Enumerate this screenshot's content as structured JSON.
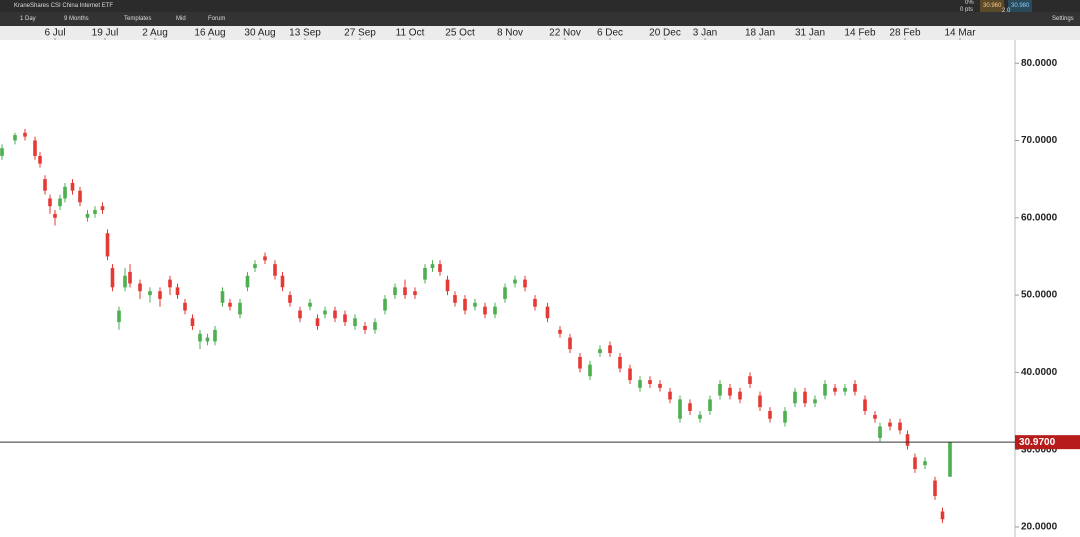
{
  "toolbar": {
    "instrument": "KraneShares CSI China Internet ETF",
    "interval": "1 Day",
    "range": "9 Months",
    "templates": "Templates",
    "price_type": "Mid",
    "forum": "Forum",
    "change_pct": "0%",
    "change_pts": "0 pts",
    "bid": "30.960",
    "ask": "30.980",
    "spread": "2.0",
    "settings": "Settings"
  },
  "chart_data": {
    "type": "candlestick",
    "up_color": "#4caf50",
    "down_color": "#e53935",
    "xlim": [
      0,
      203
    ],
    "ylim": [
      18.7,
      83
    ],
    "xticks": [
      {
        "value": 11,
        "label": "6 Jul"
      },
      {
        "value": 21,
        "label": "19 Jul"
      },
      {
        "value": 31,
        "label": "2 Aug"
      },
      {
        "value": 42,
        "label": "16 Aug"
      },
      {
        "value": 52,
        "label": "30 Aug"
      },
      {
        "value": 61,
        "label": "13 Sep"
      },
      {
        "value": 72,
        "label": "27 Sep"
      },
      {
        "value": 82,
        "label": "11 Oct"
      },
      {
        "value": 92,
        "label": "25 Oct"
      },
      {
        "value": 102,
        "label": "8 Nov"
      },
      {
        "value": 113,
        "label": "22 Nov"
      },
      {
        "value": 122,
        "label": "6 Dec"
      },
      {
        "value": 133,
        "label": "20 Dec"
      },
      {
        "value": 141,
        "label": "3 Jan"
      },
      {
        "value": 152,
        "label": "18 Jan"
      },
      {
        "value": 162,
        "label": "31 Jan"
      },
      {
        "value": 172,
        "label": "14 Feb"
      },
      {
        "value": 181,
        "label": "28 Feb"
      },
      {
        "value": 192,
        "label": "14 Mar"
      }
    ],
    "yticks": [
      {
        "value": 80,
        "label": "80.0000"
      },
      {
        "value": 70,
        "label": "70.0000"
      },
      {
        "value": 60,
        "label": "60.0000"
      },
      {
        "value": 50,
        "label": "50.0000"
      },
      {
        "value": 40,
        "label": "40.0000"
      },
      {
        "value": 30,
        "label": "30.0000"
      },
      {
        "value": 20,
        "label": "20.0000"
      }
    ],
    "last_price": {
      "value": 30.97,
      "label": "30.9700"
    },
    "x": [
      0.4,
      3,
      5,
      7,
      8,
      9,
      10,
      11,
      12,
      13,
      14.5,
      16,
      17.5,
      19,
      20.5,
      21.5,
      22.5,
      23.8,
      25,
      26,
      28,
      30,
      32,
      34,
      35.5,
      37,
      38.5,
      40,
      41.5,
      43,
      44.5,
      46,
      48,
      49.5,
      51,
      53,
      55,
      56.5,
      58,
      60,
      62,
      63.5,
      65,
      67,
      69,
      71,
      73,
      75,
      77,
      79,
      81,
      83,
      85,
      86.5,
      88,
      89.5,
      91,
      93,
      95,
      97,
      99,
      101,
      103,
      105,
      107,
      109.5,
      112,
      114,
      116,
      118,
      120,
      122,
      124,
      126,
      128,
      130,
      132,
      134,
      136,
      138,
      140,
      142,
      144,
      146,
      148,
      150,
      152,
      154,
      157,
      159,
      161,
      163,
      165,
      167,
      169,
      171,
      173,
      175,
      176,
      178,
      180,
      181.5,
      183,
      185,
      187,
      188.5,
      190
    ],
    "open": [
      68,
      70,
      71,
      70,
      68,
      65,
      62.5,
      60.5,
      61.5,
      62.5,
      64.5,
      63.5,
      60,
      60.5,
      61.5,
      58,
      53.5,
      46.5,
      51,
      53,
      51.5,
      50,
      50.5,
      52,
      51,
      49,
      47,
      44,
      44,
      44,
      49,
      49,
      47.5,
      51,
      53.5,
      55,
      54,
      52.5,
      50,
      48,
      48.5,
      47,
      47.5,
      48,
      47.5,
      46,
      46,
      45.5,
      48,
      50,
      51,
      50.5,
      52,
      53.5,
      54,
      52,
      50,
      49.5,
      48.5,
      48.5,
      47.5,
      49.5,
      51.5,
      52,
      49.5,
      48.5,
      45.5,
      44.5,
      42,
      39.5,
      42.5,
      43.5,
      42,
      40.5,
      38,
      39,
      38.5,
      37.5,
      34,
      36,
      34,
      35,
      37,
      38,
      37.5,
      39.5,
      37,
      35,
      33.5,
      36,
      37.5,
      36,
      37,
      38,
      37.5,
      38.5,
      36.5,
      34.5,
      31.5,
      33.5,
      33.5,
      32,
      29,
      28,
      26,
      22,
      26.5
    ],
    "high": [
      69.5,
      71,
      71.5,
      70.5,
      68.5,
      65.5,
      63,
      61,
      63,
      64.5,
      65,
      64,
      61,
      61.5,
      62,
      58.5,
      54,
      48.5,
      53.5,
      54,
      52,
      51,
      51,
      52.5,
      51.5,
      49.5,
      47.5,
      45.5,
      45,
      46,
      51,
      49.5,
      49.5,
      53,
      54.5,
      55.5,
      54.5,
      53,
      50.5,
      48.5,
      49.5,
      47.5,
      48.5,
      48.5,
      48,
      47.5,
      46.5,
      47,
      50,
      51.5,
      52,
      51,
      54,
      54.5,
      54.5,
      52.5,
      50.5,
      50,
      49.5,
      49,
      49,
      51.5,
      52.5,
      52.5,
      50,
      49,
      46,
      45,
      42.5,
      41.5,
      43.5,
      44,
      42.5,
      41,
      39.5,
      39.5,
      39,
      38,
      37,
      36.5,
      35,
      37,
      39,
      38.5,
      38,
      40,
      37.5,
      35.5,
      35.5,
      38,
      38,
      37,
      39,
      38.5,
      38.5,
      39,
      37,
      35,
      33.5,
      34,
      34,
      32.5,
      29.5,
      29,
      26.5,
      22.5,
      31
    ],
    "low": [
      67.5,
      69.5,
      70,
      67.5,
      66.5,
      63,
      60.5,
      59,
      61,
      62,
      63,
      61.5,
      59.5,
      60,
      60.5,
      54.5,
      50.5,
      45.5,
      50.5,
      51,
      49.5,
      49,
      48.5,
      50,
      49.5,
      47.5,
      45.5,
      43,
      43.5,
      43.5,
      48.5,
      48,
      47,
      50.5,
      53,
      54,
      52,
      50.5,
      48.5,
      46.5,
      48,
      45.5,
      47,
      46.5,
      46,
      45.5,
      45,
      45,
      47.5,
      49.5,
      49.5,
      49.5,
      51.5,
      53,
      52.5,
      50,
      48.5,
      47.5,
      48,
      47,
      47,
      49,
      51,
      50.5,
      48,
      46.5,
      44.5,
      42.5,
      40,
      39,
      42,
      42,
      40,
      38.5,
      37.5,
      38,
      37.5,
      36,
      33.5,
      34.5,
      33.5,
      34.5,
      36.5,
      36.5,
      36,
      38,
      35,
      33.5,
      33,
      35.5,
      35.5,
      35.5,
      36.5,
      37,
      37,
      37,
      34.5,
      33.5,
      31,
      32.5,
      32,
      30,
      27,
      27.5,
      23.5,
      20.5,
      26.5
    ],
    "close": [
      69,
      70.7,
      70.5,
      68,
      67,
      63.5,
      61.5,
      60,
      62.5,
      64,
      63.5,
      62,
      60.5,
      61,
      61,
      55,
      51,
      48,
      52.5,
      51.5,
      50.5,
      50.5,
      49.5,
      51,
      50,
      48,
      46,
      45,
      44.5,
      45.5,
      50.5,
      48.5,
      49,
      52.5,
      54,
      54.5,
      52.5,
      51,
      49,
      47,
      49,
      46,
      48,
      47,
      46.5,
      47,
      45.5,
      46.5,
      49.5,
      51,
      50,
      50,
      53.5,
      54,
      53,
      50.5,
      49,
      48,
      49,
      47.5,
      48.5,
      51,
      52,
      51,
      48.5,
      47,
      45,
      43,
      40.5,
      41,
      43,
      42.5,
      40.5,
      39,
      39,
      38.5,
      38,
      36.5,
      36.5,
      35,
      34.5,
      36.5,
      38.5,
      37,
      36.5,
      38.5,
      35.5,
      34,
      35,
      37.5,
      36,
      36.5,
      38.5,
      37.5,
      38,
      37.5,
      35,
      34,
      33,
      33,
      32.5,
      30.5,
      27.5,
      28.5,
      24,
      21,
      30.97
    ]
  }
}
